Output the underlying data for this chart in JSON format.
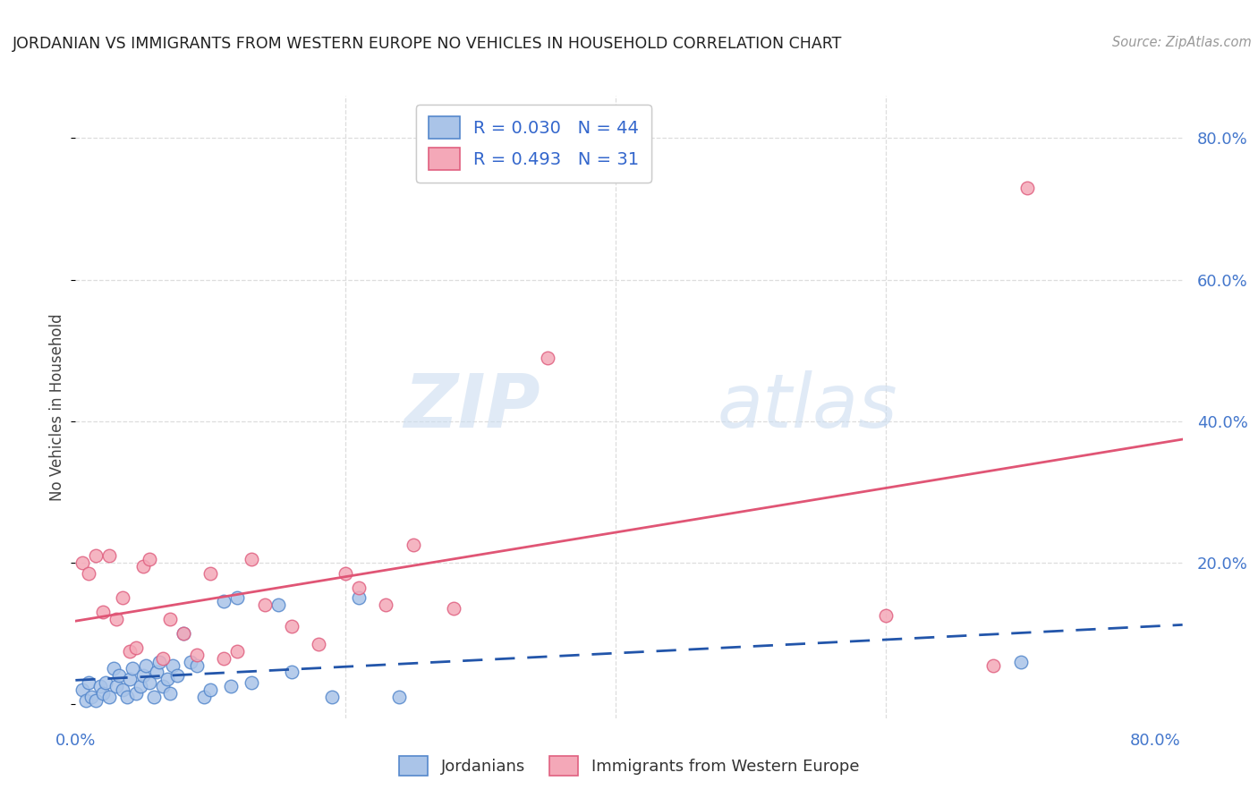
{
  "title": "JORDANIAN VS IMMIGRANTS FROM WESTERN EUROPE NO VEHICLES IN HOUSEHOLD CORRELATION CHART",
  "source": "Source: ZipAtlas.com",
  "ylabel": "No Vehicles in Household",
  "blue_R": 0.03,
  "blue_N": 44,
  "pink_R": 0.493,
  "pink_N": 31,
  "blue_color": "#aac4e8",
  "pink_color": "#f4a8b8",
  "blue_edge_color": "#5588cc",
  "pink_edge_color": "#e06080",
  "blue_line_color": "#2255aa",
  "pink_line_color": "#e05575",
  "blue_label": "Jordanians",
  "pink_label": "Immigrants from Western Europe",
  "watermark_zip": "ZIP",
  "watermark_atlas": "atlas",
  "xlim": [
    0.0,
    0.82
  ],
  "ylim": [
    -0.02,
    0.86
  ],
  "xtick_vals": [
    0.0,
    0.2,
    0.4,
    0.6,
    0.8
  ],
  "ytick_vals": [
    0.0,
    0.2,
    0.4,
    0.6,
    0.8
  ],
  "grid_color": "#dddddd",
  "blue_x": [
    0.005,
    0.008,
    0.01,
    0.012,
    0.015,
    0.018,
    0.02,
    0.022,
    0.025,
    0.028,
    0.03,
    0.032,
    0.035,
    0.038,
    0.04,
    0.042,
    0.045,
    0.048,
    0.05,
    0.052,
    0.055,
    0.058,
    0.06,
    0.062,
    0.065,
    0.068,
    0.07,
    0.072,
    0.075,
    0.08,
    0.085,
    0.09,
    0.095,
    0.1,
    0.11,
    0.115,
    0.12,
    0.13,
    0.15,
    0.16,
    0.19,
    0.21,
    0.24,
    0.7
  ],
  "blue_y": [
    0.02,
    0.005,
    0.03,
    0.01,
    0.005,
    0.025,
    0.015,
    0.03,
    0.01,
    0.05,
    0.025,
    0.04,
    0.02,
    0.01,
    0.035,
    0.05,
    0.015,
    0.025,
    0.04,
    0.055,
    0.03,
    0.01,
    0.045,
    0.06,
    0.025,
    0.035,
    0.015,
    0.055,
    0.04,
    0.1,
    0.06,
    0.055,
    0.01,
    0.02,
    0.145,
    0.025,
    0.15,
    0.03,
    0.14,
    0.045,
    0.01,
    0.15,
    0.01,
    0.06
  ],
  "pink_x": [
    0.005,
    0.01,
    0.015,
    0.02,
    0.025,
    0.03,
    0.035,
    0.04,
    0.045,
    0.05,
    0.055,
    0.065,
    0.07,
    0.08,
    0.09,
    0.1,
    0.11,
    0.12,
    0.13,
    0.14,
    0.16,
    0.18,
    0.2,
    0.21,
    0.23,
    0.25,
    0.28,
    0.35,
    0.6,
    0.68,
    0.705
  ],
  "pink_y": [
    0.2,
    0.185,
    0.21,
    0.13,
    0.21,
    0.12,
    0.15,
    0.075,
    0.08,
    0.195,
    0.205,
    0.065,
    0.12,
    0.1,
    0.07,
    0.185,
    0.065,
    0.075,
    0.205,
    0.14,
    0.11,
    0.085,
    0.185,
    0.165,
    0.14,
    0.225,
    0.135,
    0.49,
    0.125,
    0.055,
    0.73
  ]
}
